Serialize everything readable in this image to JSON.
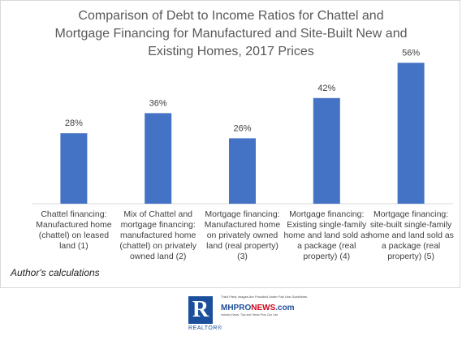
{
  "chart_data": {
    "type": "bar",
    "title_lines": [
      "Comparison of Debt to Income Ratios for Chattel and",
      "Mortgage Financing for Manufactured and Site-Built New and",
      "Existing Homes, 2017 Prices"
    ],
    "categories": [
      [
        "Chattel financing:",
        "Manufactured home",
        "(chattel) on leased",
        "land (1)"
      ],
      [
        "Mix of Chattel and",
        "mortgage financing:",
        "manufactured home",
        "(chattel) on privately",
        "owned land (2)"
      ],
      [
        "Mortgage financing:",
        "Manufactured home",
        "on privately owned",
        "land (real property)",
        "(3)"
      ],
      [
        "Mortgage financing:",
        "Existing single-family",
        "home and land sold as",
        "a package (real",
        "property) (4)"
      ],
      [
        "Mortgage financing:",
        "site-built single-family",
        "home and land sold as",
        "a package (real",
        "property) (5)"
      ]
    ],
    "values": [
      28,
      36,
      26,
      42,
      56
    ],
    "data_labels": [
      "28%",
      "36%",
      "26%",
      "42%",
      "56%"
    ],
    "ylim": [
      0,
      60
    ],
    "bar_color": "#4472c4",
    "grid": false,
    "legend": "none"
  },
  "footnote": "Author's calculations",
  "logos": {
    "realtor_letter": "R",
    "realtor_word": "REALTOR®",
    "mhpro_tagline": "Third Party Images Are Provided Under Fair Use Guidelines.",
    "mhpro_name_a": "MHPRO",
    "mhpro_name_b": "NEWS",
    "mhpro_name_c": ".com",
    "mhpro_sub": "Industry News, Tips and Views Pros Can Use"
  }
}
